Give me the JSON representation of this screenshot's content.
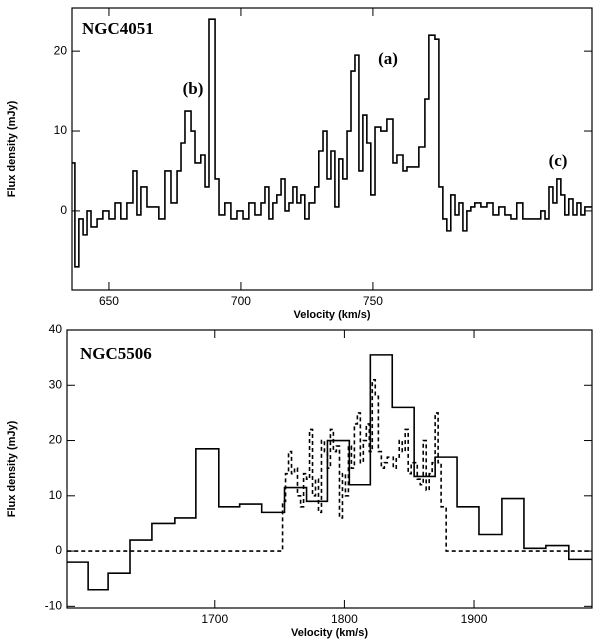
{
  "chart_data": [
    {
      "type": "step",
      "annotations": [
        "NGC4051",
        "(b)",
        "(a)",
        "(c)"
      ],
      "x_label": "Velocity (km/s)",
      "y_label": "Flux density (mJy)",
      "xlim": [
        636,
        833
      ],
      "ylim": [
        -9.9,
        25.4
      ],
      "xticks": [
        650,
        700,
        750
      ],
      "yticks": [
        0,
        10,
        20
      ],
      "series": [
        {
          "color": "#000000",
          "line_style": "solid",
          "x": [
            636.0,
            637.1,
            638.6,
            640.2,
            641.7,
            643.2,
            645.5,
            647.7,
            650,
            652.3,
            654.5,
            656.8,
            659.1,
            660.6,
            662.1,
            664.4,
            666.7,
            668.9,
            671.2,
            673.5,
            675.8,
            677.3,
            678.8,
            681.1,
            682.6,
            684.8,
            686.4,
            687.9,
            690.2,
            691.7,
            693.9,
            696.2,
            698.5,
            700.8,
            703.0,
            705.3,
            707.6,
            709.1,
            710.6,
            712.1,
            713.6,
            715.2,
            716.7,
            718.2,
            719.7,
            721.2,
            722.7,
            724.2,
            725.8,
            728.0,
            729.5,
            731.1,
            732.6,
            734.1,
            735.6,
            737.1,
            738.6,
            740.2,
            741.7,
            743.2,
            744.7,
            746.2,
            747.7,
            749.2,
            750.8,
            753.0,
            755.3,
            757.6,
            759.1,
            761.4,
            762.9,
            765.2,
            767.4,
            769.7,
            771.2,
            773.5,
            775.0,
            776.5,
            778.0,
            779.5,
            781.1,
            782.6,
            784.1,
            785.6,
            787.1,
            788.6,
            790.9,
            793.2,
            795.5,
            797.7,
            800.0,
            802.3,
            804.5,
            806.8,
            809.1,
            811.4,
            813.6,
            815.2,
            816.7,
            818.2,
            819.7,
            821.2,
            822.7,
            824.2,
            825.8,
            827.3,
            828.8,
            830.3,
            831.8
          ],
          "values": [
            6,
            -7,
            -1,
            -3,
            0,
            -2,
            -1,
            0,
            -1,
            1,
            -1,
            1,
            5,
            -0.5,
            3,
            0.5,
            0.5,
            -1,
            5,
            1,
            5,
            8.5,
            12.5,
            10,
            6,
            7,
            3,
            24,
            4,
            -0.5,
            1,
            -1,
            0,
            -1,
            1,
            -0.5,
            1,
            3,
            -1,
            1,
            2,
            4,
            0,
            1,
            3,
            1,
            2,
            -1,
            1,
            3,
            7.5,
            10,
            4,
            7.5,
            0.5,
            6.5,
            4,
            10,
            17.5,
            19.5,
            5,
            12,
            8.5,
            2,
            10.5,
            10,
            11.5,
            6,
            7,
            5,
            5.5,
            5.5,
            8,
            14,
            22,
            21.5,
            3,
            -1,
            -2.5,
            2,
            -0.5,
            1,
            -2.5,
            0,
            0.5,
            1,
            0.5,
            1,
            -0.5,
            0.5,
            -0.5,
            -1,
            1,
            -1,
            -1,
            -1,
            0,
            -1,
            3,
            1,
            4,
            2,
            -0.5,
            1.5,
            -0.5,
            1,
            -0.5,
            0.5,
            0.5
          ]
        }
      ]
    },
    {
      "type": "step",
      "annotations": [
        "NGC5506"
      ],
      "x_label": "Velocity (km/s)",
      "y_label": "Flux density (mJy)",
      "xlim": [
        1586,
        1991
      ],
      "ylim": [
        -10.3,
        40
      ],
      "xticks": [
        1700,
        1800,
        1900
      ],
      "yticks": [
        -10,
        0,
        10,
        20,
        30,
        40
      ],
      "series": [
        {
          "color": "#000000",
          "line_style": "solid",
          "x": [
            1586.2,
            1602.3,
            1617.7,
            1634.6,
            1651.5,
            1669.2,
            1685.4,
            1703.1,
            1719.2,
            1736.2,
            1753.8,
            1770.8,
            1786.9,
            1803.8,
            1820,
            1836.9,
            1853.8,
            1870,
            1886.9,
            1903.8,
            1921.5,
            1938.5,
            1955.4,
            1973.1
          ],
          "values": [
            -2,
            -7,
            -4,
            2,
            5,
            6,
            18.5,
            8,
            8.5,
            7,
            11.5,
            9,
            20,
            12,
            35.5,
            26,
            13.5,
            17,
            8,
            3,
            9.5,
            0.5,
            1,
            -1.5
          ]
        },
        {
          "color": "#000000",
          "line_style": "dashed",
          "x": [
            1586.2,
            1752.3,
            1754.6,
            1756.9,
            1759.2,
            1761.5,
            1763.8,
            1766.2,
            1768.5,
            1770.8,
            1773.1,
            1775.4,
            1777.7,
            1780,
            1782.3,
            1784.6,
            1786.9,
            1789.2,
            1791.5,
            1793.8,
            1796.2,
            1798.5,
            1800.8,
            1803.1,
            1805.4,
            1807.7,
            1810,
            1812.3,
            1814.6,
            1816.9,
            1819.2,
            1821.5,
            1823.8,
            1826.2,
            1828.5,
            1830.8,
            1833.1,
            1835.4,
            1837.7,
            1840,
            1842.3,
            1844.6,
            1846.9,
            1849.2,
            1851.5,
            1853.8,
            1856.2,
            1858.5,
            1860.8,
            1863.1,
            1865.4,
            1867.7,
            1870,
            1872.3,
            1874.6,
            1878.5
          ],
          "values": [
            0,
            9,
            14,
            18,
            14,
            15,
            10,
            8,
            14,
            13,
            22,
            10,
            13,
            7,
            20,
            18,
            15,
            22,
            18,
            19,
            6,
            14,
            10,
            19,
            15,
            23,
            25,
            16,
            20,
            23,
            18,
            31,
            28,
            18,
            15,
            16,
            17,
            17,
            15,
            17,
            20,
            18,
            22,
            14,
            16,
            16,
            13,
            12,
            20,
            11,
            14,
            16,
            25,
            16,
            8,
            0
          ]
        }
      ]
    }
  ]
}
